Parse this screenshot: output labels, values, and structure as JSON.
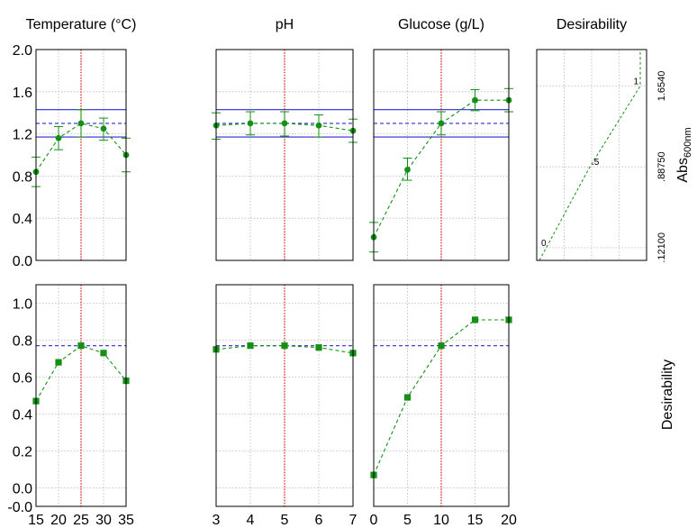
{
  "colors": {
    "series": "#149014",
    "band": "#2a2ad0",
    "reference": "#e00000",
    "grid": "#b9b9b9"
  },
  "row_labels": {
    "top": "Abs600nm",
    "bottom": "Desirability"
  },
  "top_yticks": [
    "2.0",
    "1.6",
    "1.2",
    "0.8",
    "0.4",
    "0.0"
  ],
  "bottom_yticks": [
    "1.0",
    "0.8",
    "0.6",
    "0.4",
    "0.2",
    "0.0",
    "-0.0"
  ],
  "chart_data": [
    {
      "type": "line",
      "title": "Temperature (°C)",
      "x": [
        15,
        20,
        25,
        30,
        35
      ],
      "xlim": [
        15,
        35
      ],
      "xticks": [
        15,
        20,
        25,
        30,
        35
      ],
      "current_x": 25,
      "ylim": [
        0,
        2
      ],
      "ylabel": "",
      "band": {
        "lower": 1.17,
        "mid": 1.3,
        "upper": 1.43
      },
      "series": [
        {
          "values": [
            0.84,
            1.16,
            1.3,
            1.25,
            1.0
          ],
          "err_low": [
            0.7,
            1.05,
            1.17,
            1.14,
            0.84
          ],
          "err_high": [
            0.98,
            1.27,
            1.43,
            1.35,
            1.16
          ]
        }
      ],
      "desirability": {
        "ylim": [
          -0.1,
          1.1
        ],
        "threshold": 0.77,
        "values": [
          0.47,
          0.68,
          0.77,
          0.73,
          0.58
        ]
      }
    },
    {
      "type": "line",
      "title": "pH",
      "x": [
        3,
        4,
        5,
        6,
        7
      ],
      "xlim": [
        3,
        7
      ],
      "xticks": [
        3,
        4,
        5,
        6,
        7
      ],
      "current_x": 5,
      "ylim": [
        0,
        2
      ],
      "band": {
        "lower": 1.17,
        "mid": 1.3,
        "upper": 1.43
      },
      "series": [
        {
          "values": [
            1.28,
            1.3,
            1.3,
            1.28,
            1.23
          ],
          "err_low": [
            1.15,
            1.19,
            1.18,
            1.17,
            1.12
          ],
          "err_high": [
            1.4,
            1.41,
            1.41,
            1.38,
            1.34
          ]
        }
      ],
      "desirability": {
        "ylim": [
          -0.1,
          1.1
        ],
        "threshold": 0.77,
        "values": [
          0.75,
          0.77,
          0.77,
          0.76,
          0.73
        ]
      }
    },
    {
      "type": "line",
      "title": "Glucose (g/L)",
      "x": [
        0,
        5,
        10,
        15,
        20
      ],
      "xlim": [
        0,
        20
      ],
      "xticks": [
        0,
        5,
        10,
        15,
        20
      ],
      "current_x": 10,
      "ylim": [
        0,
        2
      ],
      "band": {
        "lower": 1.17,
        "mid": 1.3,
        "upper": 1.43
      },
      "series": [
        {
          "values": [
            0.22,
            0.86,
            1.3,
            1.52,
            1.52
          ],
          "err_low": [
            0.08,
            0.76,
            1.19,
            1.42,
            1.41
          ],
          "err_high": [
            0.36,
            0.97,
            1.41,
            1.62,
            1.63
          ]
        }
      ],
      "desirability": {
        "ylim": [
          -0.1,
          1.1
        ],
        "threshold": 0.77,
        "values": [
          0.07,
          0.49,
          0.77,
          0.91,
          0.91
        ]
      }
    },
    {
      "type": "line",
      "title": "Desirability",
      "y_tick_labels": [
        "1.6540",
        ".88750",
        ".12100"
      ],
      "y_tick_values": [
        1.654,
        0.8875,
        0.121
      ],
      "point_labels": [
        "0",
        ".5",
        "1"
      ],
      "ylim": [
        0,
        2
      ],
      "curve": {
        "desirability": [
          0,
          0.5,
          1,
          1.0
        ],
        "abs": [
          0.0,
          0.8875,
          1.654,
          2.0
        ]
      }
    }
  ]
}
